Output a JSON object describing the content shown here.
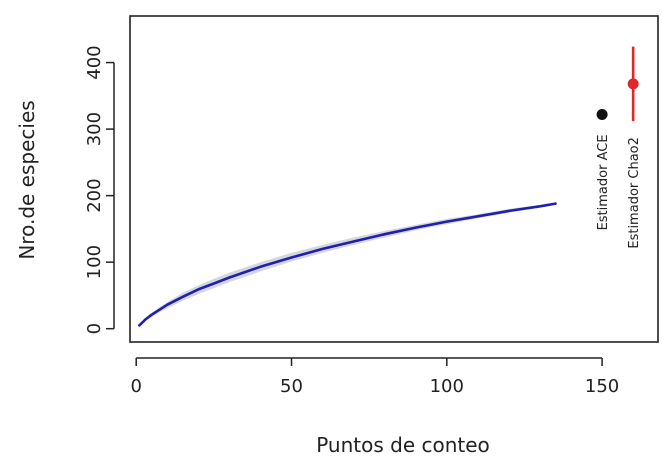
{
  "chart_data": {
    "type": "line",
    "title": "",
    "xlabel": "Puntos de conteo",
    "ylabel": "Nro.de especies",
    "xlim": [
      -2,
      168
    ],
    "ylim": [
      -20,
      470
    ],
    "x_ticks": [
      0,
      50,
      100,
      150
    ],
    "y_ticks": [
      0,
      100,
      200,
      300,
      400
    ],
    "x_tick_labels": [
      "0",
      "50",
      "100",
      "150"
    ],
    "y_tick_labels": [
      "0",
      "100",
      "200",
      "300",
      "400"
    ],
    "grid": false,
    "legend": "none",
    "series": [
      {
        "type": "line",
        "color": "#2020b0",
        "band_color": "#c9ccd8",
        "x": [
          1,
          3,
          5,
          8,
          10,
          15,
          20,
          25,
          30,
          40,
          50,
          60,
          70,
          80,
          90,
          100,
          110,
          120,
          130,
          135
        ],
        "values": [
          5,
          14,
          21,
          30,
          36,
          48,
          59,
          68,
          77,
          93,
          107,
          120,
          131,
          142,
          152,
          161,
          169,
          177,
          184,
          188
        ],
        "lower": [
          5,
          12,
          18,
          26,
          31,
          42,
          52,
          61,
          70,
          86,
          101,
          114,
          126,
          137,
          148,
          157,
          166,
          174,
          182,
          187
        ],
        "upper": [
          5,
          16,
          24,
          34,
          40,
          54,
          65,
          75,
          84,
          100,
          114,
          126,
          137,
          147,
          156,
          165,
          172,
          180,
          186,
          189
        ]
      }
    ],
    "estimators": [
      {
        "label": "Estimador ACE",
        "x": 150,
        "value": 322,
        "lower": 316,
        "upper": 328,
        "color": "#111111"
      },
      {
        "label": "Estimador Chao2",
        "x": 160,
        "value": 368,
        "lower": 312,
        "upper": 424,
        "color": "#e0282a"
      }
    ]
  }
}
